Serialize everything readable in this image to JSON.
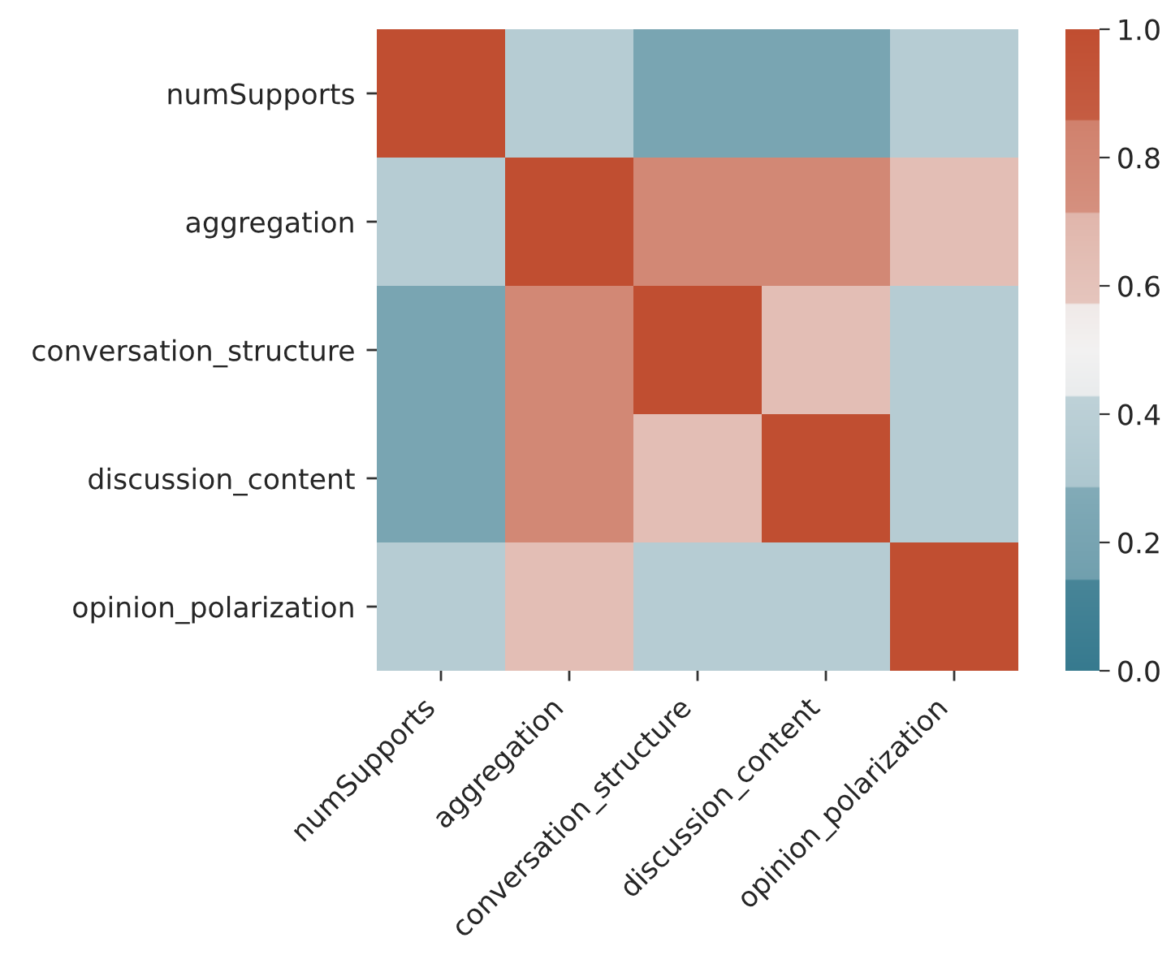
{
  "chart_data": {
    "type": "heatmap",
    "categories": [
      "numSupports",
      "aggregation",
      "conversation_structure",
      "discussion_content",
      "opinion_polarization"
    ],
    "y_categories": [
      "numSupports",
      "aggregation",
      "conversation_structure",
      "discussion_content",
      "opinion_polarization"
    ],
    "cells": [
      [
        1.0,
        0.36,
        0.21,
        0.21,
        0.36
      ],
      [
        0.36,
        1.0,
        0.79,
        0.79,
        0.64
      ],
      [
        0.21,
        0.79,
        1.0,
        0.64,
        0.36
      ],
      [
        0.21,
        0.79,
        0.64,
        1.0,
        0.36
      ],
      [
        0.36,
        0.64,
        0.36,
        0.36,
        1.0
      ]
    ],
    "clim": [
      0,
      1
    ],
    "cticks": [
      {
        "value": 0,
        "label": "0.0"
      },
      0.2,
      0.4,
      0.6,
      0.8,
      {
        "value": 1,
        "label": "1.0"
      }
    ]
  }
}
